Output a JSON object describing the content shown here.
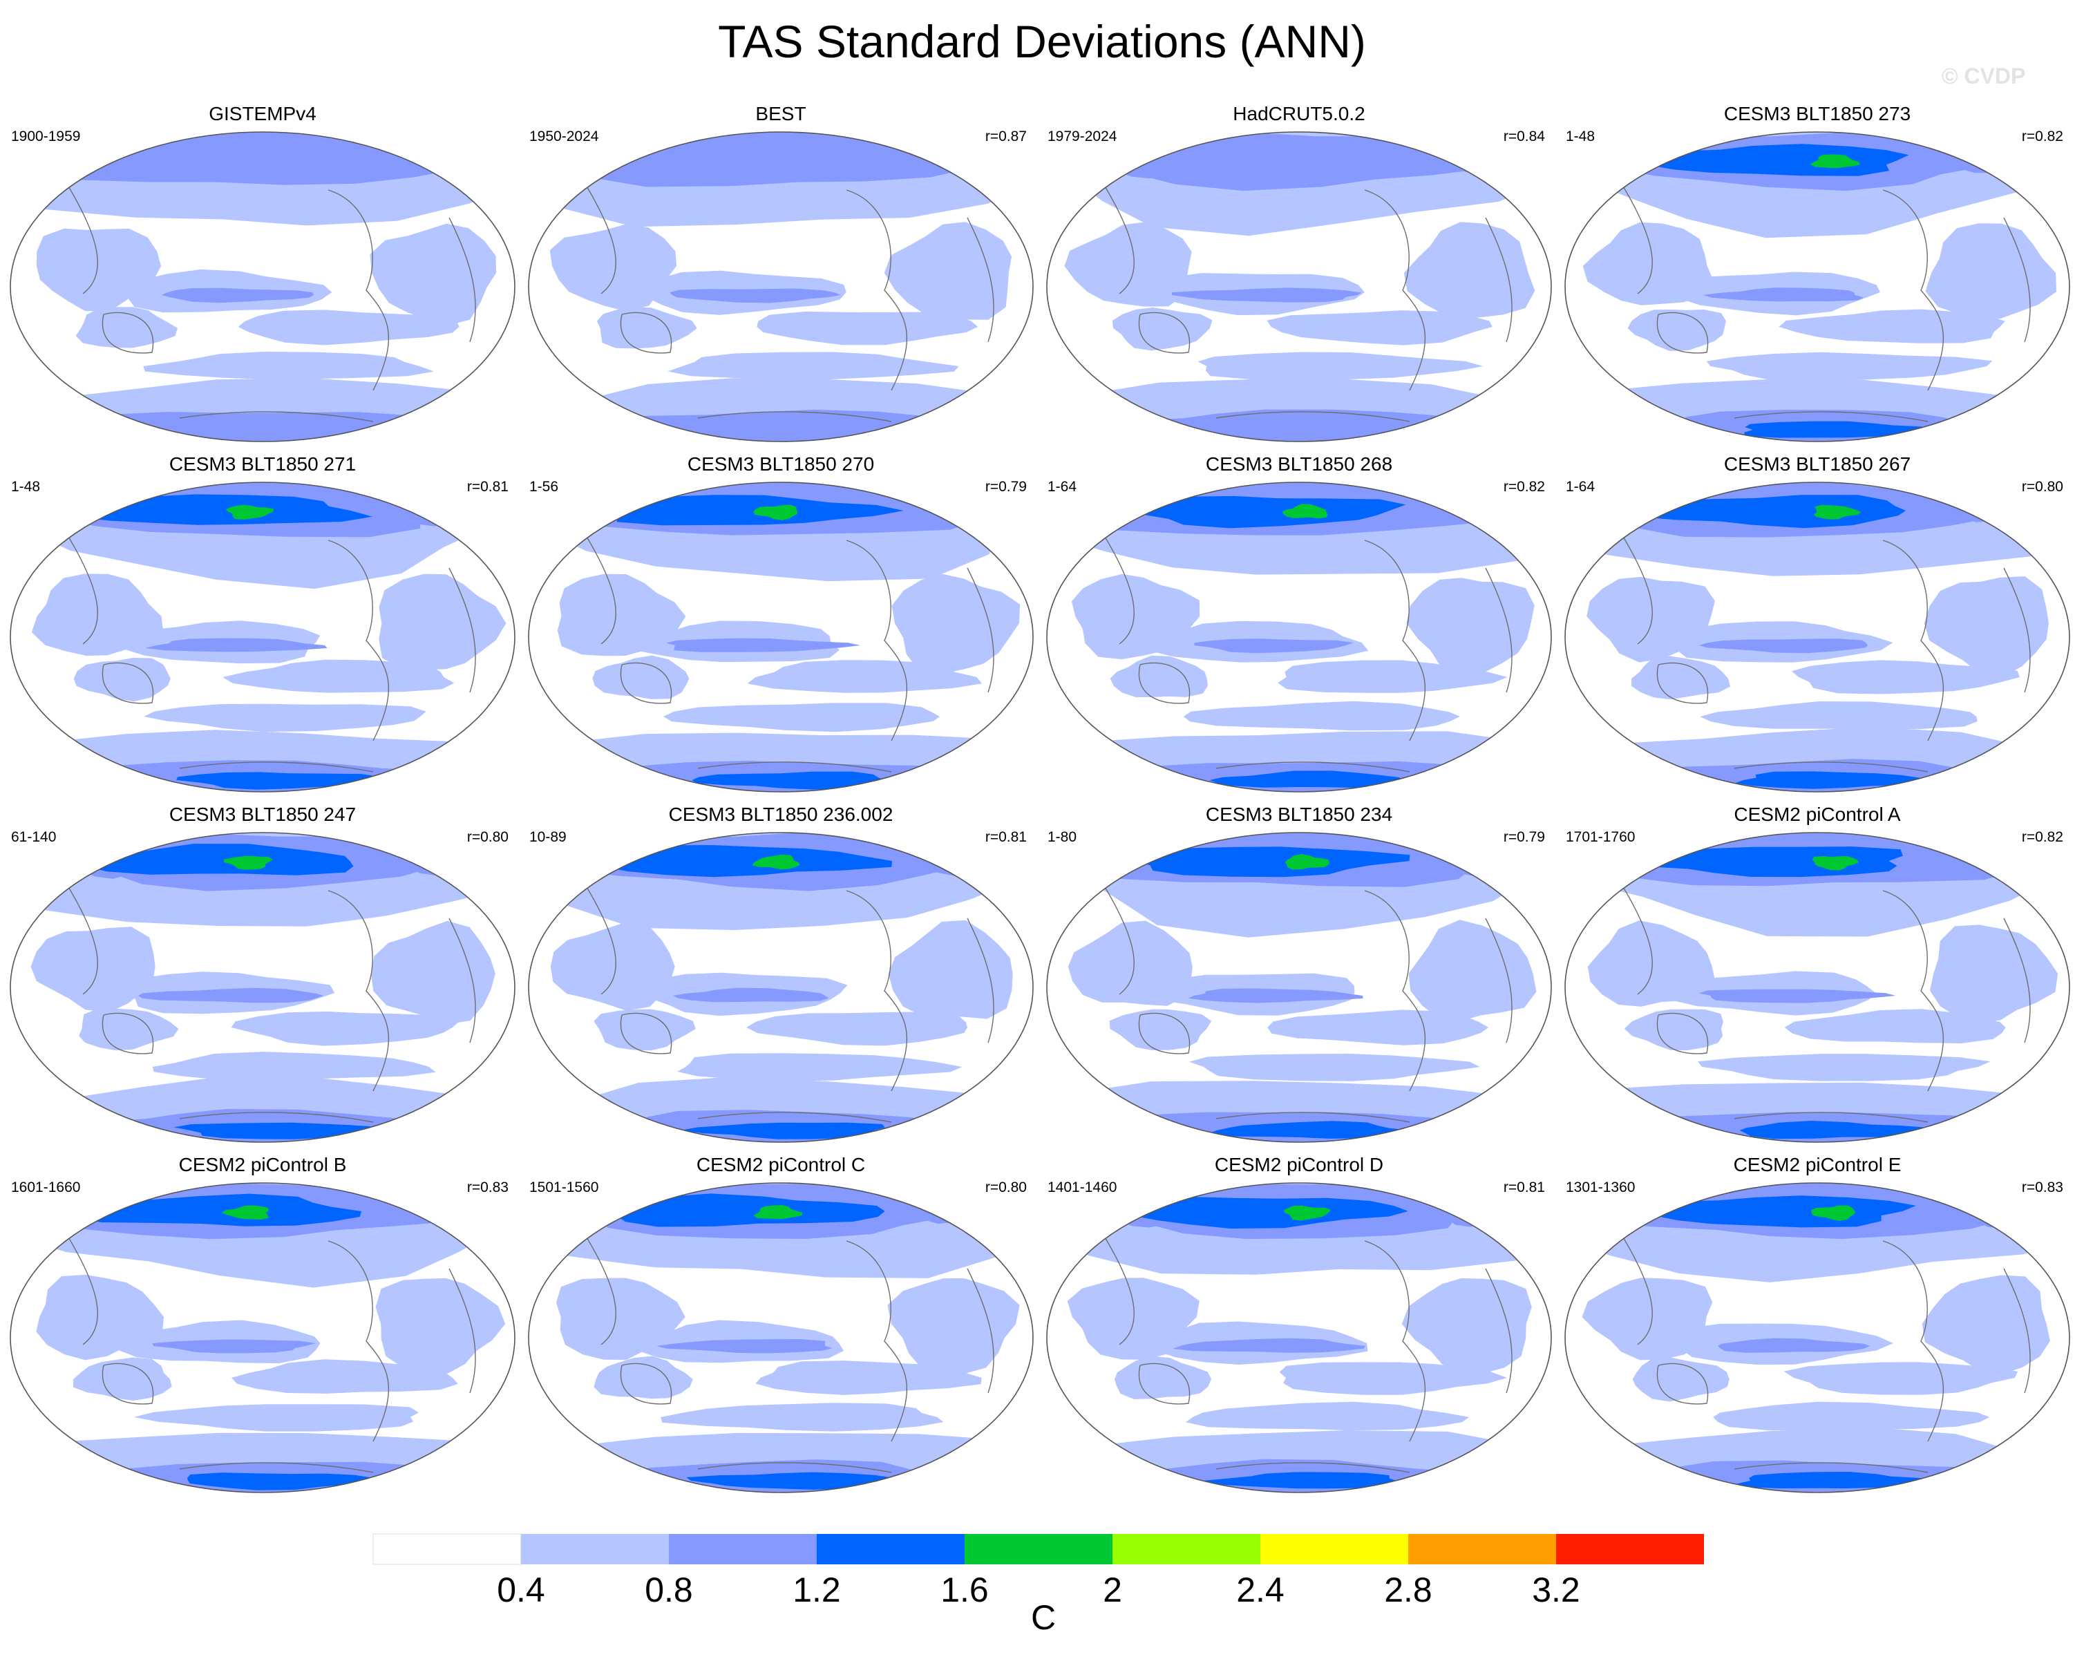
{
  "title": "TAS Standard Deviations (ANN)",
  "watermark": "© CVDP",
  "chart_data": {
    "type": "heatmap",
    "variable": "TAS",
    "statistic": "standard deviation",
    "season": "ANN",
    "projection": "Robinson (Pacific-centered global map)",
    "colorbar": {
      "unit": "C",
      "levels": [
        0.4,
        0.8,
        1.2,
        1.6,
        2,
        2.4,
        2.8,
        3.2
      ],
      "tick_labels": [
        "0.4",
        "0.8",
        "1.2",
        "1.6",
        "2",
        "2.4",
        "2.8",
        "3.2"
      ],
      "colors": [
        "#ffffff",
        "#b4c5ff",
        "#8599ff",
        "#0064ff",
        "#00c832",
        "#96ff00",
        "#ffff00",
        "#ffa000",
        "#ff1e00"
      ]
    },
    "panels": [
      {
        "name": "GISTEMPv4",
        "period": "1900-1959",
        "r": "",
        "max_level": 2,
        "variant": 0
      },
      {
        "name": "BEST",
        "period": "1950-2024",
        "r": "r=0.87",
        "max_level": 2,
        "variant": 1
      },
      {
        "name": "HadCRUT5.0.2",
        "period": "1979-2024",
        "r": "r=0.84",
        "max_level": 2,
        "variant": 2
      },
      {
        "name": "CESM3 BLT1850 273",
        "period": "1-48",
        "r": "r=0.82",
        "max_level": 4,
        "variant": 3
      },
      {
        "name": "CESM3 BLT1850 271",
        "period": "1-48",
        "r": "r=0.81",
        "max_level": 5,
        "variant": 4
      },
      {
        "name": "CESM3 BLT1850 270",
        "period": "1-56",
        "r": "r=0.79",
        "max_level": 5,
        "variant": 5
      },
      {
        "name": "CESM3 BLT1850 268",
        "period": "1-64",
        "r": "r=0.82",
        "max_level": 5,
        "variant": 6
      },
      {
        "name": "CESM3 BLT1850 267",
        "period": "1-64",
        "r": "r=0.80",
        "max_level": 5,
        "variant": 7
      },
      {
        "name": "CESM3 BLT1850 247",
        "period": "61-140",
        "r": "r=0.80",
        "max_level": 5,
        "variant": 8
      },
      {
        "name": "CESM3 BLT1850 236.002",
        "period": "10-89",
        "r": "r=0.81",
        "max_level": 4,
        "variant": 9
      },
      {
        "name": "CESM3 BLT1850 234",
        "period": "1-80",
        "r": "r=0.79",
        "max_level": 5,
        "variant": 10
      },
      {
        "name": "CESM2 piControl A",
        "period": "1701-1760",
        "r": "r=0.82",
        "max_level": 4,
        "variant": 11
      },
      {
        "name": "CESM2 piControl B",
        "period": "1601-1660",
        "r": "r=0.83",
        "max_level": 4,
        "variant": 12
      },
      {
        "name": "CESM2 piControl C",
        "period": "1501-1560",
        "r": "r=0.80",
        "max_level": 4,
        "variant": 13
      },
      {
        "name": "CESM2 piControl D",
        "period": "1401-1460",
        "r": "r=0.81",
        "max_level": 5,
        "variant": 14
      },
      {
        "name": "CESM2 piControl E",
        "period": "1301-1360",
        "r": "r=0.83",
        "max_level": 5,
        "variant": 15
      }
    ]
  }
}
